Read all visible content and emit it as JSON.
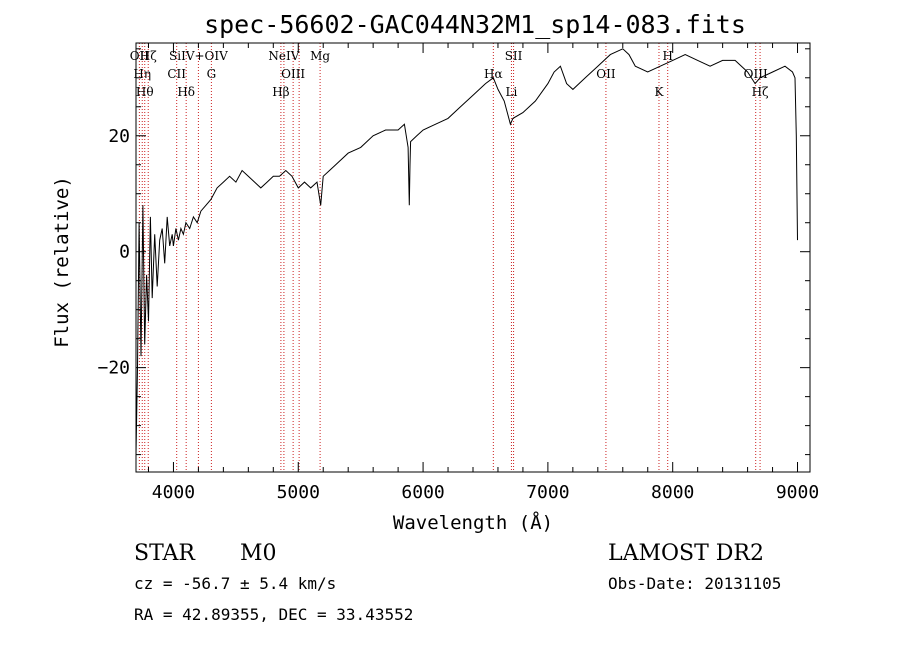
{
  "chart_data": {
    "type": "line",
    "title": "spec-56602-GAC044N32M1_sp14-083.fits",
    "xlabel": "Wavelength (Å)",
    "ylabel": "Flux (relative)",
    "xlim": [
      3700,
      9100
    ],
    "ylim": [
      -38,
      36
    ],
    "x_ticks": [
      4000,
      5000,
      6000,
      7000,
      8000,
      9000
    ],
    "x_tick_labels": [
      "4000",
      "5000",
      "6000",
      "7000",
      "8000",
      "9000"
    ],
    "y_ticks": [
      -20,
      0,
      20
    ],
    "y_tick_labels": [
      "−20",
      "0",
      "20"
    ],
    "grid": false,
    "series": [
      {
        "x": [
          3700,
          3712,
          3725,
          3740,
          3755,
          3770,
          3785,
          3800,
          3815,
          3830,
          3850,
          3870,
          3890,
          3910,
          3930,
          3950,
          3970,
          3990,
          4000,
          4020,
          4040,
          4060,
          4080,
          4100,
          4130,
          4160,
          4190,
          4220,
          4260,
          4300,
          4350,
          4400,
          4450,
          4500,
          4550,
          4600,
          4650,
          4700,
          4750,
          4800,
          4850,
          4900,
          4950,
          5000,
          5050,
          5100,
          5150,
          5180,
          5200,
          5250,
          5300,
          5400,
          5500,
          5600,
          5700,
          5800,
          5850,
          5880,
          5890,
          5895,
          5900,
          5950,
          6000,
          6100,
          6200,
          6300,
          6400,
          6500,
          6563,
          6600,
          6650,
          6700,
          6720,
          6800,
          6900,
          7000,
          7050,
          7100,
          7150,
          7200,
          7300,
          7400,
          7500,
          7600,
          7650,
          7700,
          7800,
          7900,
          8000,
          8100,
          8200,
          8300,
          8400,
          8500,
          8600,
          8660,
          8700,
          8800,
          8900,
          8960,
          8980,
          8990,
          9000
        ],
        "y": [
          -35,
          -20,
          5,
          -18,
          8,
          -16,
          -4,
          -12,
          6,
          -8,
          3,
          -6,
          2,
          4,
          -2,
          6,
          1,
          3,
          1,
          4,
          2,
          4,
          3,
          5,
          4,
          6,
          5,
          7,
          8,
          9,
          11,
          12,
          13,
          12,
          14,
          13,
          12,
          11,
          12,
          13,
          13,
          14,
          13,
          11,
          12,
          11,
          12,
          8,
          13,
          14,
          15,
          17,
          18,
          20,
          21,
          21,
          22,
          18,
          8,
          15,
          19,
          20,
          21,
          22,
          23,
          25,
          27,
          29,
          30,
          28,
          26,
          22,
          23,
          24,
          26,
          29,
          31,
          32,
          29,
          28,
          30,
          32,
          34,
          35,
          34,
          32,
          31,
          32,
          33,
          34,
          33,
          32,
          33,
          33,
          31,
          29,
          30,
          31,
          32,
          31,
          30,
          20,
          2
        ]
      }
    ],
    "lines": [
      {
        "x": 3727,
        "label": "OII"
      },
      {
        "x": 3750,
        "label": "Hη"
      },
      {
        "x": 3770,
        "label": "Hθ"
      },
      {
        "x": 3798,
        "label": "Hζ"
      },
      {
        "x": 4026,
        "label": "CII"
      },
      {
        "x": 4102,
        "label": "Hδ"
      },
      {
        "x": 4200,
        "label": "SiIV+OIV"
      },
      {
        "x": 4304,
        "label": "G"
      },
      {
        "x": 4861,
        "label": "Hβ"
      },
      {
        "x": 4885,
        "label": "NeIV"
      },
      {
        "x": 4959,
        "label": "OIII"
      },
      {
        "x": 5007,
        "label": ""
      },
      {
        "x": 5175,
        "label": "Mg"
      },
      {
        "x": 6563,
        "label": "Hα"
      },
      {
        "x": 6708,
        "label": "Li"
      },
      {
        "x": 6725,
        "label": "SII"
      },
      {
        "x": 7465,
        "label": "OII"
      },
      {
        "x": 7890,
        "label": "K"
      },
      {
        "x": 7960,
        "label": "H"
      },
      {
        "x": 8665,
        "label": "OIII"
      },
      {
        "x": 8700,
        "label": "Hζ"
      }
    ]
  },
  "info": {
    "star": "STAR",
    "subclass": "M0",
    "survey": "LAMOST DR2",
    "cz": "cz = -56.7 ± 5.4 km/s",
    "obs_date": "Obs-Date: 20131105",
    "coords": "RA =  42.89355, DEC =  33.43552"
  },
  "colors": {
    "spectrum": "#000000",
    "line_marker": "#cc2222",
    "axes": "#000000"
  }
}
